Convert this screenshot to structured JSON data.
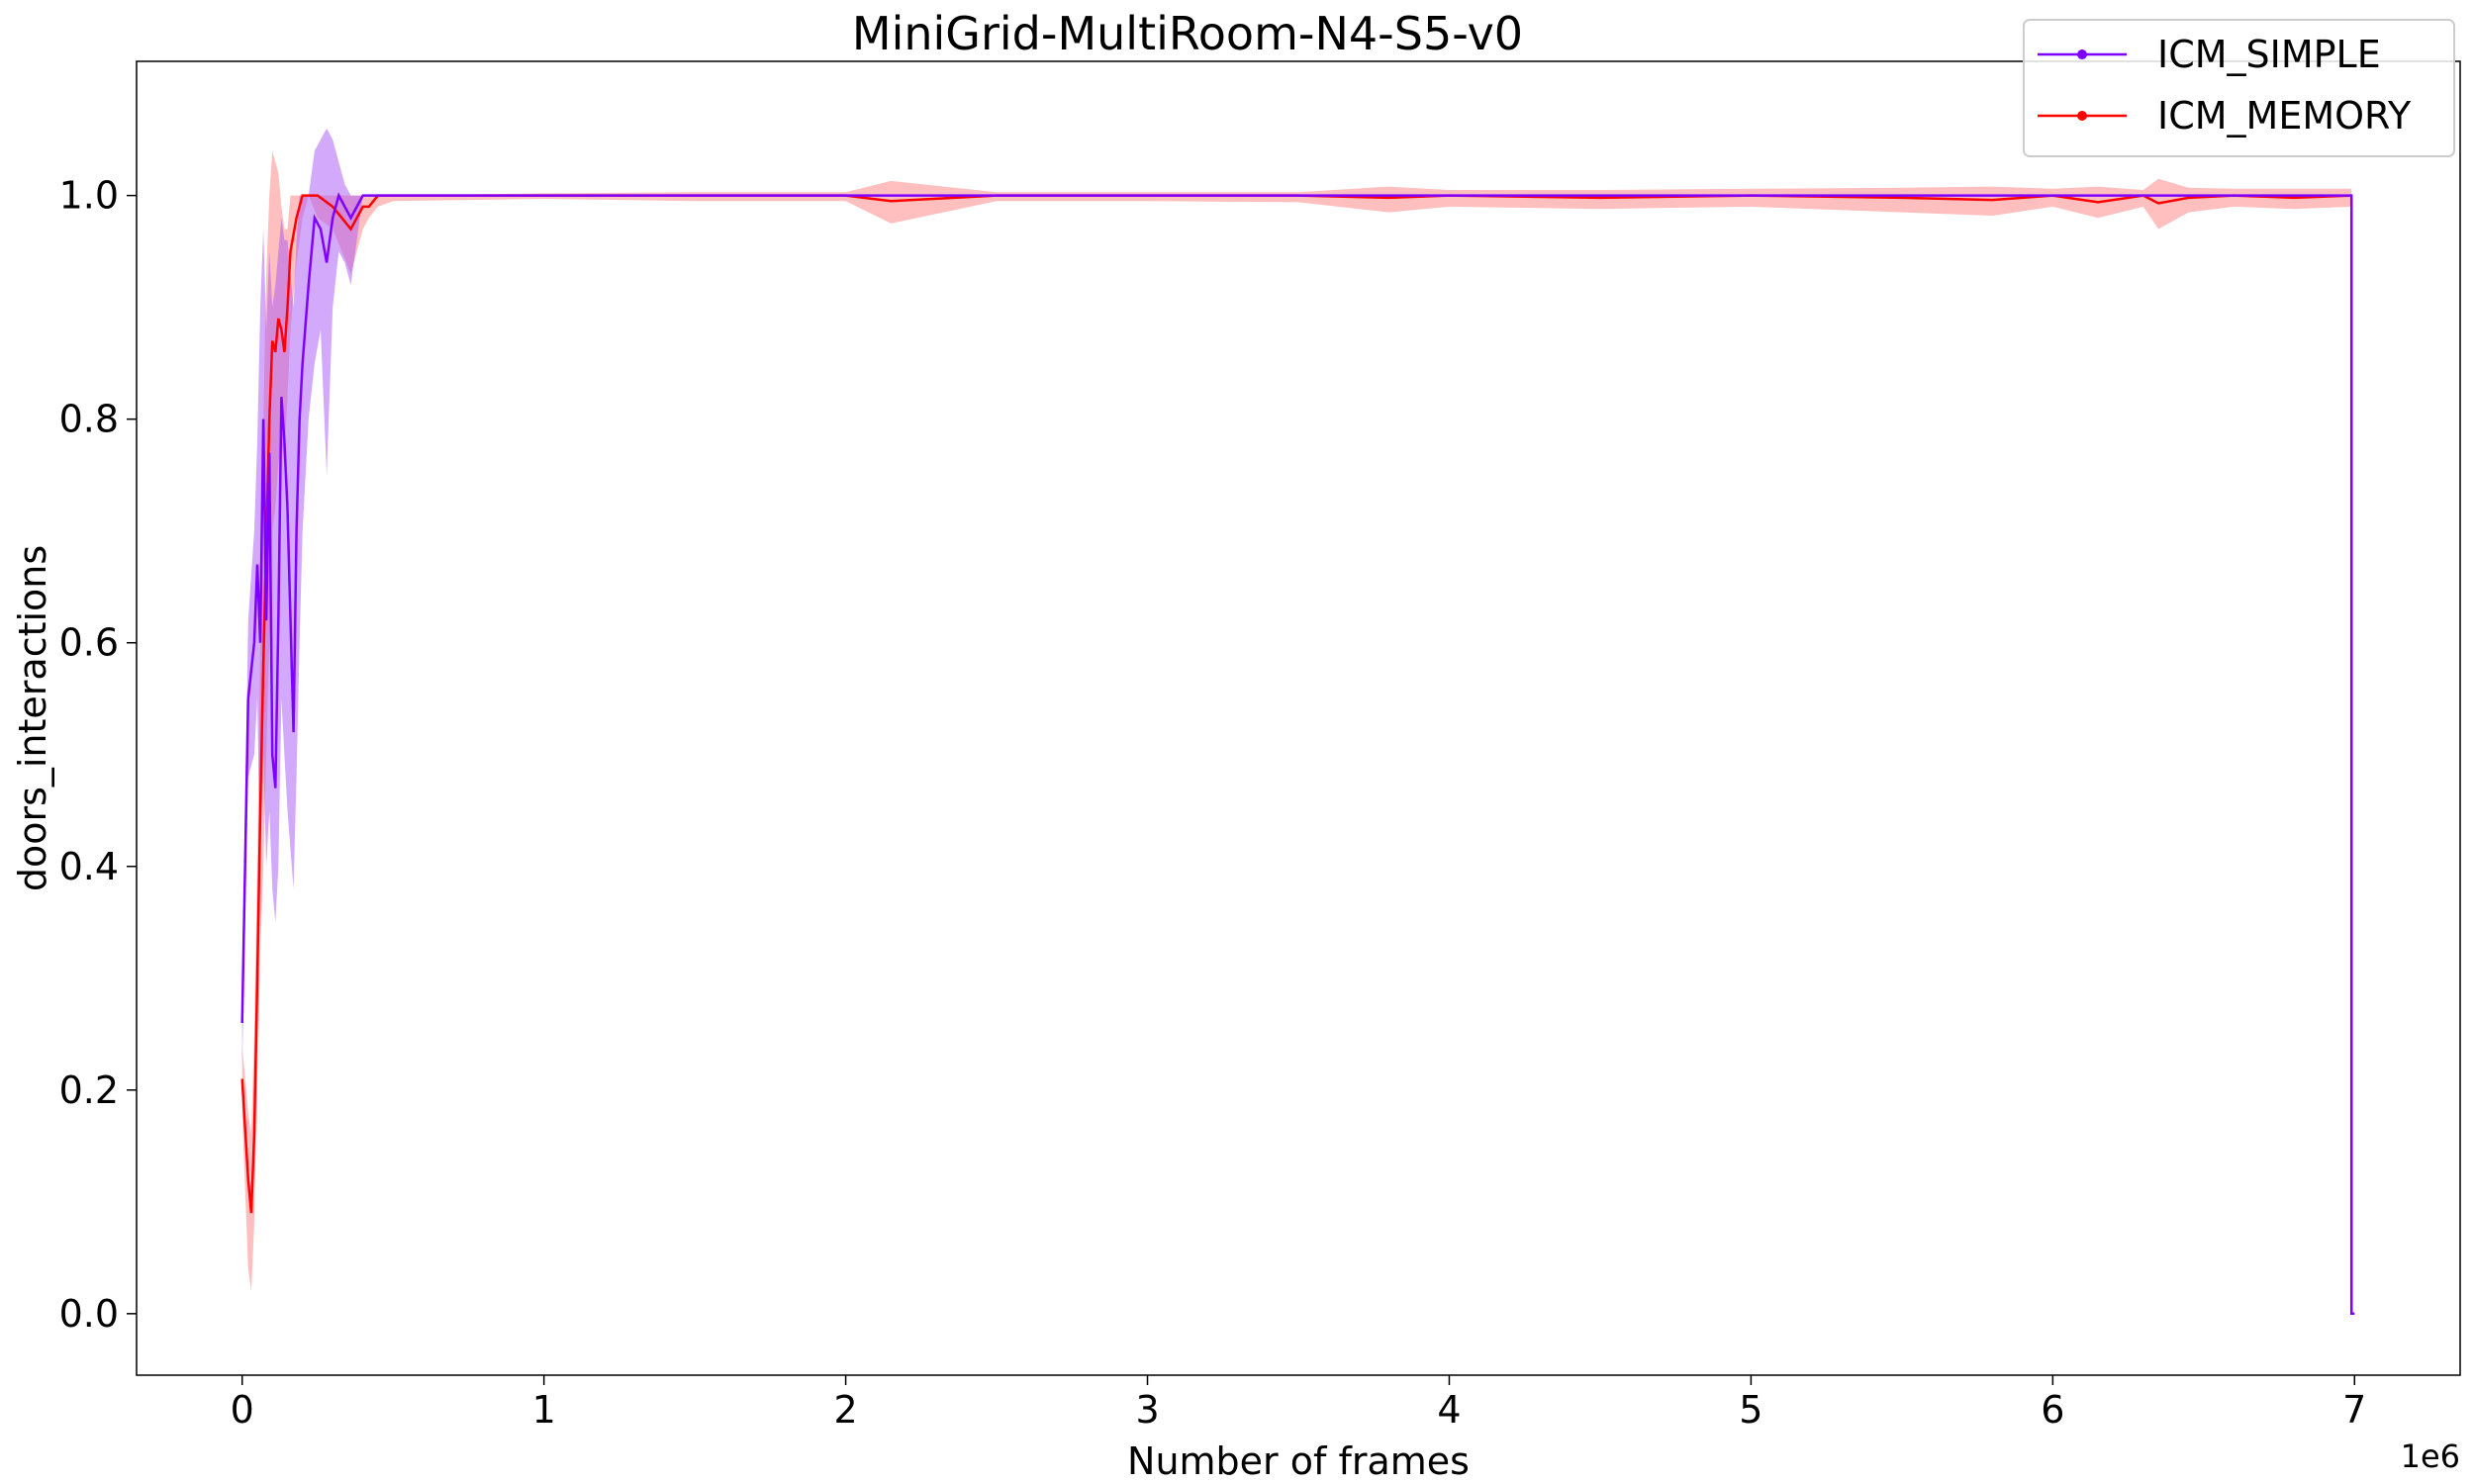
{
  "chart_data": {
    "type": "line",
    "title": "MiniGrid-MultiRoom-N4-S5-v0",
    "xlabel": "Number of frames",
    "ylabel": "doors_interactions",
    "x_offset_label": "1e6",
    "x_scale": 1000000,
    "xlim": [
      -350000,
      7350000
    ],
    "ylim": [
      -0.055,
      1.12
    ],
    "xticks": [
      0,
      1,
      2,
      3,
      4,
      5,
      6,
      7
    ],
    "xtick_labels": [
      "0",
      "1",
      "2",
      "3",
      "4",
      "5",
      "6",
      "7"
    ],
    "yticks": [
      0.0,
      0.2,
      0.4,
      0.6,
      0.8,
      1.0
    ],
    "ytick_labels": [
      "0.0",
      "0.2",
      "0.4",
      "0.6",
      "0.8",
      "1.0"
    ],
    "grid": false,
    "legend_position": "top-right",
    "series": [
      {
        "name": "ICM_SIMPLE",
        "color": "#8000ff",
        "band_color": "#a855f7",
        "x": [
          0,
          20000,
          40000,
          50000,
          60000,
          70000,
          80000,
          90000,
          100000,
          110000,
          120000,
          130000,
          140000,
          150000,
          170000,
          180000,
          190000,
          200000,
          220000,
          240000,
          260000,
          280000,
          300000,
          320000,
          340000,
          360000,
          380000,
          400000,
          450000,
          500000,
          1000000,
          2000000,
          3000000,
          4000000,
          5000000,
          6000000,
          6990000,
          6990001,
          7000000
        ],
        "y": [
          0.26,
          0.55,
          0.6,
          0.67,
          0.6,
          0.8,
          0.62,
          0.77,
          0.5,
          0.47,
          0.62,
          0.82,
          0.78,
          0.72,
          0.52,
          0.7,
          0.8,
          0.85,
          0.92,
          0.98,
          0.97,
          0.94,
          0.98,
          1.0,
          0.99,
          0.98,
          0.99,
          1.0,
          1.0,
          1.0,
          1.0,
          1.0,
          1.0,
          1.0,
          1.0,
          1.0,
          1.0,
          0.0,
          0.0
        ],
        "upper": [
          0.3,
          0.62,
          0.7,
          0.78,
          0.9,
          0.97,
          0.88,
          0.95,
          0.9,
          0.92,
          0.95,
          0.98,
          0.96,
          0.96,
          0.9,
          0.96,
          1.0,
          1.0,
          1.0,
          1.04,
          1.05,
          1.06,
          1.05,
          1.03,
          1.01,
          1.0,
          1.0,
          1.0,
          1.0,
          1.0,
          1.0,
          1.0,
          1.0,
          1.0,
          1.0,
          1.0,
          1.0,
          0.0,
          0.0
        ],
        "lower": [
          0.22,
          0.48,
          0.5,
          0.55,
          0.4,
          0.5,
          0.4,
          0.45,
          0.38,
          0.35,
          0.4,
          0.55,
          0.5,
          0.45,
          0.38,
          0.48,
          0.6,
          0.7,
          0.8,
          0.85,
          0.88,
          0.75,
          0.9,
          0.95,
          0.94,
          0.92,
          0.96,
          1.0,
          1.0,
          1.0,
          1.0,
          1.0,
          1.0,
          1.0,
          1.0,
          1.0,
          1.0,
          0.0,
          0.0
        ]
      },
      {
        "name": "ICM_MEMORY",
        "color": "#ff0000",
        "band_color": "#ff8080",
        "x": [
          0,
          20000,
          30000,
          40000,
          50000,
          60000,
          70000,
          80000,
          90000,
          100000,
          110000,
          120000,
          130000,
          140000,
          150000,
          160000,
          180000,
          200000,
          220000,
          250000,
          300000,
          330000,
          360000,
          380000,
          400000,
          420000,
          450000,
          500000,
          1000000,
          1500000,
          2000000,
          2150000,
          2500000,
          3000000,
          3500000,
          3800000,
          4000000,
          4500000,
          5000000,
          5500000,
          5800000,
          6000000,
          6150000,
          6300000,
          6350000,
          6450000,
          6600000,
          6800000,
          6990000
        ],
        "y": [
          0.21,
          0.12,
          0.09,
          0.16,
          0.3,
          0.45,
          0.58,
          0.69,
          0.8,
          0.87,
          0.86,
          0.89,
          0.88,
          0.86,
          0.9,
          0.95,
          0.98,
          1.0,
          1.0,
          1.0,
          0.99,
          0.98,
          0.97,
          0.98,
          0.99,
          0.99,
          1.0,
          1.0,
          1.0,
          1.0,
          1.0,
          0.995,
          1.0,
          1.0,
          1.0,
          0.998,
          1.0,
          0.998,
          1.0,
          0.998,
          0.996,
          1.0,
          0.994,
          1.0,
          0.993,
          0.998,
          1.0,
          0.998,
          1.0
        ],
        "upper": [
          0.24,
          0.18,
          0.16,
          0.25,
          0.4,
          0.6,
          0.8,
          0.93,
          1.0,
          1.04,
          1.03,
          1.02,
          0.99,
          0.97,
          0.97,
          1.0,
          1.0,
          1.0,
          1.0,
          1.0,
          1.0,
          1.0,
          1.0,
          1.0,
          1.0,
          1.0,
          1.0,
          1.0,
          1.002,
          1.003,
          1.003,
          1.013,
          1.003,
          1.003,
          1.003,
          1.008,
          1.005,
          1.005,
          1.006,
          1.007,
          1.008,
          1.006,
          1.008,
          1.005,
          1.015,
          1.007,
          1.006,
          1.006,
          1.006
        ],
        "lower": [
          0.18,
          0.04,
          0.02,
          0.08,
          0.2,
          0.32,
          0.4,
          0.5,
          0.6,
          0.7,
          0.72,
          0.76,
          0.78,
          0.76,
          0.82,
          0.88,
          0.94,
          0.98,
          1.0,
          0.98,
          0.97,
          0.95,
          0.93,
          0.95,
          0.97,
          0.98,
          0.99,
          0.995,
          0.997,
          0.995,
          0.995,
          0.975,
          0.995,
          0.995,
          0.994,
          0.985,
          0.99,
          0.988,
          0.99,
          0.985,
          0.982,
          0.99,
          0.98,
          0.99,
          0.97,
          0.985,
          0.99,
          0.988,
          0.99
        ]
      }
    ]
  }
}
